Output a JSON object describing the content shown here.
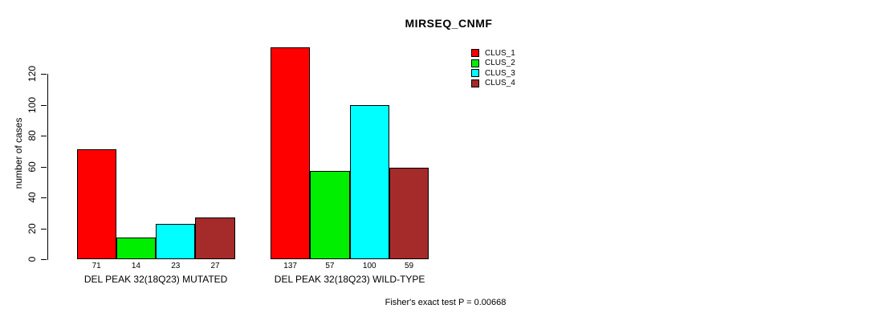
{
  "chart_data": {
    "type": "bar",
    "title": "MIRSEQ_CNMF",
    "categories": [
      "DEL PEAK 32(18Q23) MUTATED",
      "DEL PEAK 32(18Q23) WILD-TYPE"
    ],
    "series": [
      {
        "name": "CLUS_1",
        "color": "#FF0000",
        "values": [
          71,
          137
        ]
      },
      {
        "name": "CLUS_2",
        "color": "#00EE00",
        "values": [
          14,
          57
        ]
      },
      {
        "name": "CLUS_3",
        "color": "#00FFFF",
        "values": [
          23,
          100
        ]
      },
      {
        "name": "CLUS_4",
        "color": "#A52A2A",
        "values": [
          27,
          59
        ]
      }
    ],
    "bar_value_labels": [
      [
        71,
        14,
        23,
        27
      ],
      [
        137,
        57,
        100,
        59
      ]
    ],
    "ylabel": "number of cases",
    "yticks": [
      0,
      20,
      40,
      60,
      80,
      100,
      120
    ],
    "ylim": [
      0,
      142
    ],
    "grid": false,
    "legend_position": "top-right",
    "annotation": "Fisher's exact test P = 0.00668",
    "axis_color": "#000000",
    "background_color": "#FFFFFF"
  }
}
